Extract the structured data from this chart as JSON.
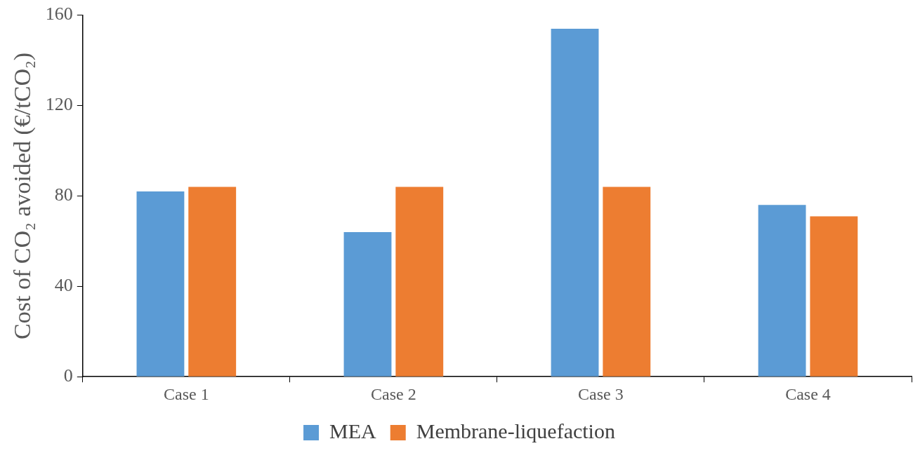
{
  "chart_data": {
    "type": "bar",
    "ylabel": "Cost of CO₂ avoided (€/tCO₂)",
    "categories": [
      "Case 1",
      "Case 2",
      "Case 3",
      "Case 4"
    ],
    "series": [
      {
        "name": "MEA",
        "color": "#5b9bd5",
        "values": [
          82,
          64,
          154,
          76
        ]
      },
      {
        "name": "Membrane-liquefaction",
        "color": "#ed7d31",
        "values": [
          84,
          84,
          84,
          71
        ]
      }
    ],
    "ylim": [
      0,
      160
    ],
    "yticks": [
      0,
      40,
      80,
      120,
      160
    ],
    "grid": false,
    "legend": "bottom"
  }
}
